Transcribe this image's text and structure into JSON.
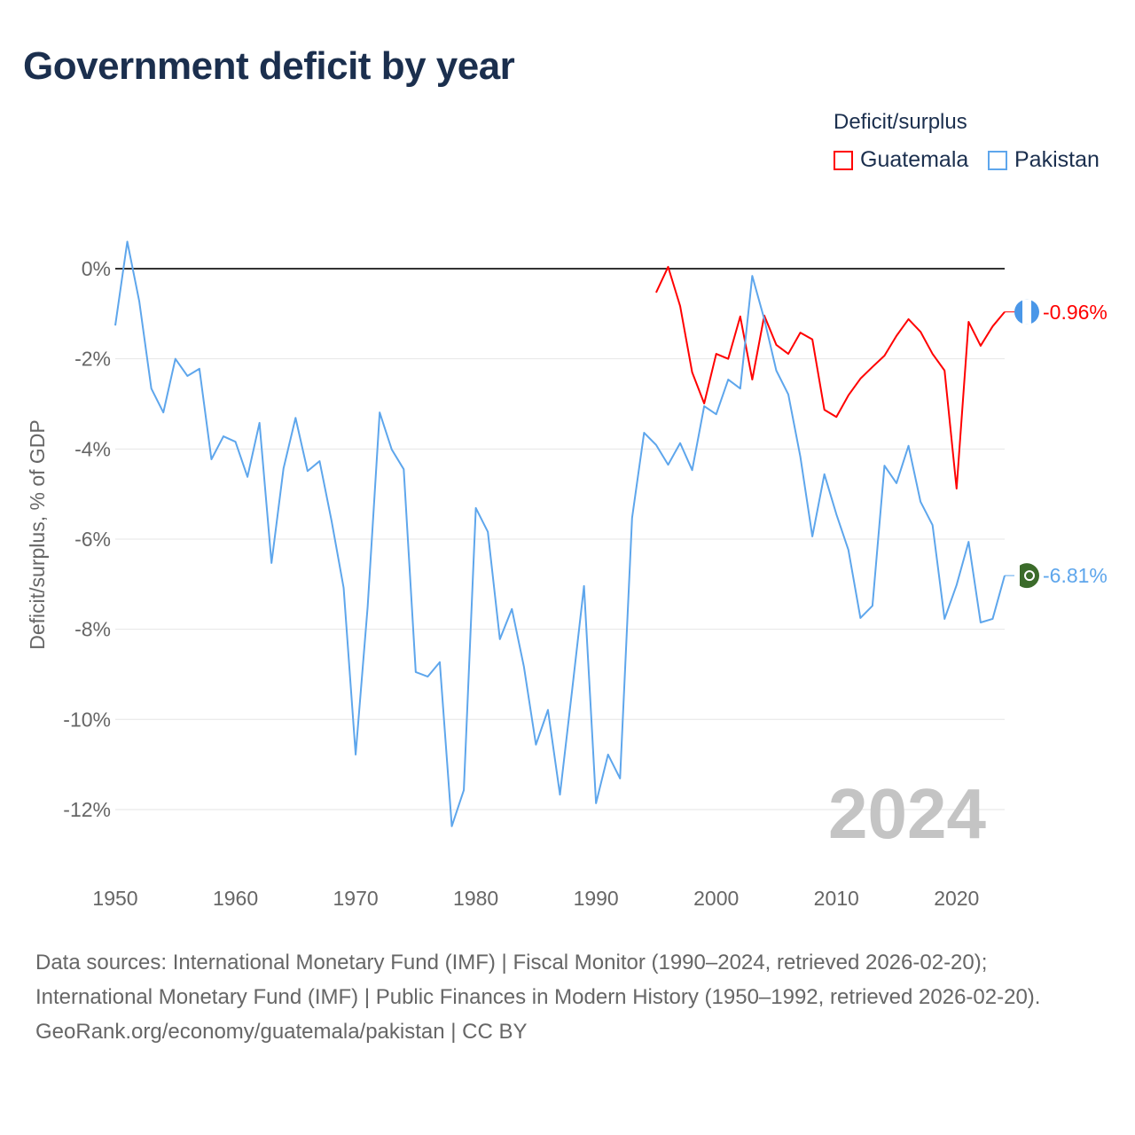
{
  "title": "Government deficit by year",
  "legend": {
    "title": "Deficit/surplus",
    "items": [
      {
        "label": "Guatemala",
        "color": "#ff0000"
      },
      {
        "label": "Pakistan",
        "color": "#5ea6ec"
      }
    ]
  },
  "chart_data": {
    "type": "line",
    "ylabel": "Deficit/surplus, % of GDP",
    "xlim": [
      1950,
      2024
    ],
    "ylim": [
      -12,
      0
    ],
    "xticks": [
      1950,
      1960,
      1970,
      1980,
      1990,
      2000,
      2010,
      2020
    ],
    "yticks": [
      0,
      -2,
      -4,
      -6,
      -8,
      -10,
      -12
    ],
    "ytick_labels": [
      "0%",
      "-2%",
      "-4%",
      "-6%",
      "-8%",
      "-10%",
      "-12%"
    ],
    "year_label": "2024",
    "series": [
      {
        "name": "Guatemala",
        "color": "#ff0000",
        "end_label": "-0.96%",
        "start_year": 1995,
        "values": [
          -0.53,
          0.04,
          -0.83,
          -2.3,
          -2.99,
          -1.89,
          -2.0,
          -1.06,
          -2.46,
          -1.04,
          -1.69,
          -1.89,
          -1.42,
          -1.57,
          -3.13,
          -3.29,
          -2.81,
          -2.44,
          -2.18,
          -1.93,
          -1.49,
          -1.12,
          -1.4,
          -1.89,
          -2.26,
          -4.88,
          -1.18,
          -1.71,
          -1.28,
          -0.96
        ]
      },
      {
        "name": "Pakistan",
        "color": "#5ea6ec",
        "end_label": "-6.81%",
        "start_year": 1950,
        "values": [
          -1.26,
          0.6,
          -0.73,
          -2.66,
          -3.19,
          -2.0,
          -2.38,
          -2.22,
          -4.23,
          -3.72,
          -3.84,
          -4.62,
          -3.42,
          -6.53,
          -4.43,
          -3.31,
          -4.49,
          -4.27,
          -5.6,
          -7.08,
          -10.78,
          -7.5,
          -3.19,
          -4.01,
          -4.45,
          -8.95,
          -9.05,
          -8.73,
          -12.37,
          -11.57,
          -5.31,
          -5.84,
          -8.22,
          -7.55,
          -8.83,
          -10.56,
          -9.79,
          -11.67,
          -9.38,
          -7.04,
          -11.86,
          -10.78,
          -11.31,
          -5.53,
          -3.64,
          -3.91,
          -4.35,
          -3.87,
          -4.47,
          -3.05,
          -3.23,
          -2.46,
          -2.66,
          -0.16,
          -1.12,
          -2.26,
          -2.79,
          -4.17,
          -5.94,
          -4.56,
          -5.45,
          -6.24,
          -7.75,
          -7.48,
          -4.37,
          -4.76,
          -3.93,
          -5.17,
          -5.69,
          -7.77,
          -7.02,
          -6.06,
          -7.85,
          -7.77,
          -6.81
        ]
      }
    ]
  },
  "footer": {
    "sources": "Data sources: International Monetary Fund (IMF) | Fiscal Monitor (1990–2024, retrieved 2026-02-20); International Monetary Fund (IMF) | Public Finances in Modern History (1950–1992, retrieved 2026-02-20).",
    "credit": "GeoRank.org/economy/guatemala/pakistan | CC BY"
  }
}
